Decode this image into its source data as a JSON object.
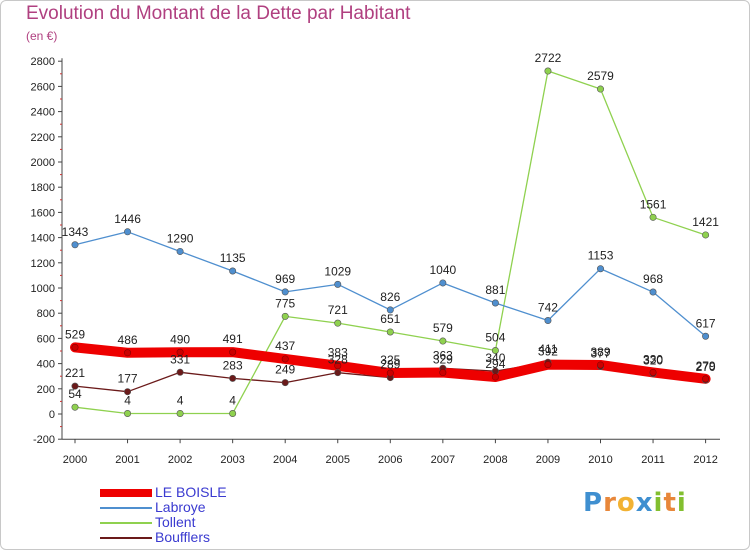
{
  "title": "Evolution du Montant de la Dette par Habitant",
  "subtitle": "(en €)",
  "logo": {
    "letters": [
      "P",
      "r",
      "o",
      "x",
      "i",
      "t",
      "i"
    ]
  },
  "chart_data": {
    "type": "line",
    "x": [
      "2000",
      "2001",
      "2002",
      "2003",
      "2004",
      "2005",
      "2006",
      "2007",
      "2008",
      "2009",
      "2010",
      "2011",
      "2012"
    ],
    "ylim": [
      -200,
      2800
    ],
    "yticks": [
      -200,
      0,
      200,
      400,
      600,
      800,
      1000,
      1200,
      1400,
      1600,
      1800,
      2000,
      2200,
      2400,
      2600,
      2800
    ],
    "grid": false,
    "legend_position": "bottom-left",
    "series": [
      {
        "name": "Boufflers",
        "color": "#6b1a1a",
        "values": [
          221,
          177,
          331,
          283,
          249,
          328,
          289,
          363,
          340,
          411,
          377,
          320,
          270
        ]
      },
      {
        "name": "Tollent",
        "color": "#8fd14f",
        "values": [
          54,
          4,
          4,
          4,
          775,
          721,
          651,
          579,
          504,
          2722,
          2579,
          1561,
          1421
        ]
      },
      {
        "name": "Labroye",
        "color": "#4f8fcf",
        "values": [
          1343,
          1446,
          1290,
          1135,
          969,
          1029,
          826,
          1040,
          881,
          742,
          1153,
          968,
          617
        ]
      },
      {
        "name": "LE BOISLE",
        "color": "#ee0000",
        "values": [
          529,
          486,
          490,
          491,
          437,
          383,
          325,
          329,
          294,
          392,
          389,
          330,
          279
        ]
      }
    ]
  },
  "legend": [
    {
      "label": "LE BOISLE",
      "color": "#ee0000"
    },
    {
      "label": "Labroye",
      "color": "#4f8fcf"
    },
    {
      "label": "Tollent",
      "color": "#8fd14f"
    },
    {
      "label": "Boufflers",
      "color": "#6b1a1a"
    }
  ]
}
